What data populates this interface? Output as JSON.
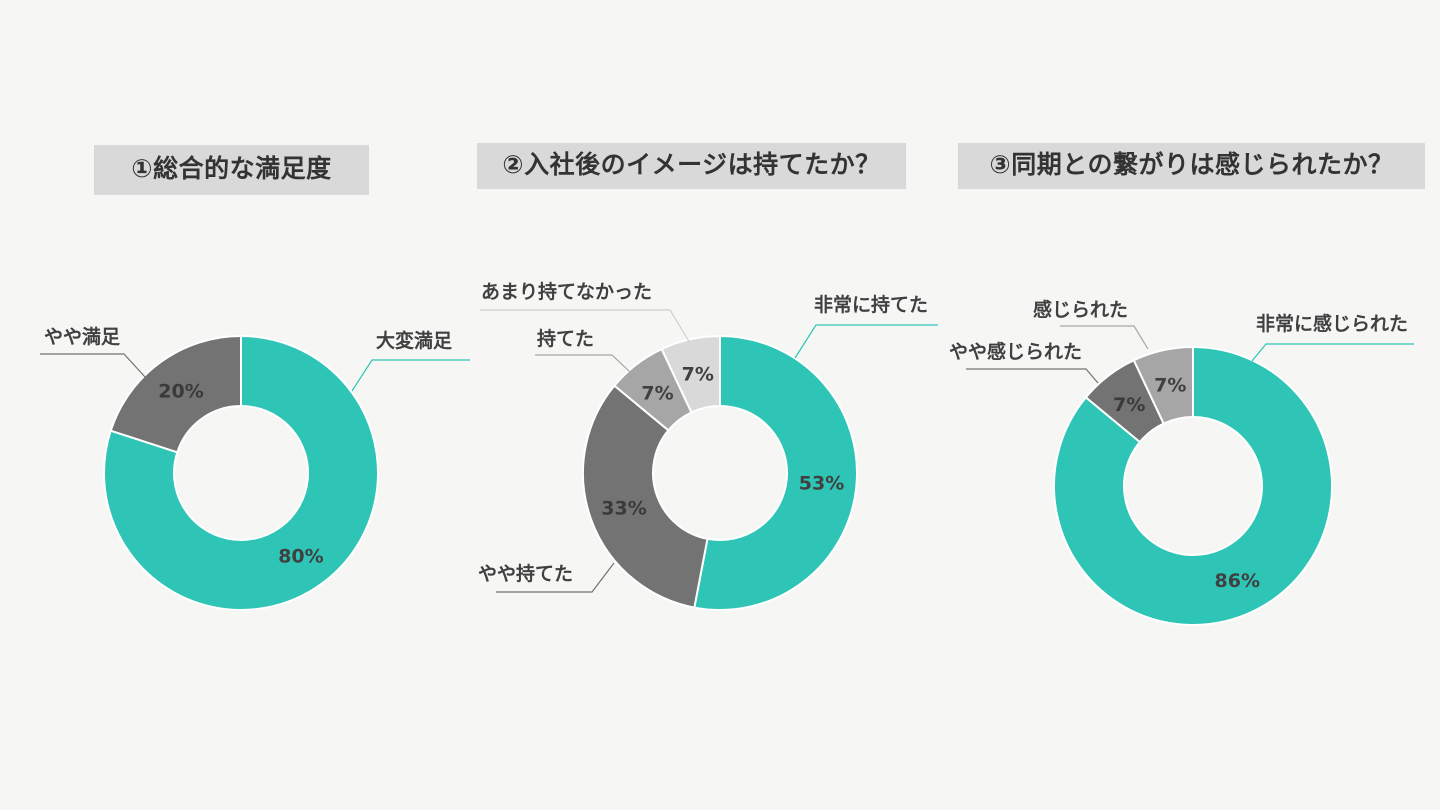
{
  "chart_data": [
    {
      "type": "donut",
      "title": "①総合的な満足度",
      "slices": [
        {
          "label": "大変満足",
          "value": 80,
          "display": "80%",
          "color": "#2ec5b6"
        },
        {
          "label": "やや満足",
          "value": 20,
          "display": "20%",
          "color": "#737373"
        }
      ]
    },
    {
      "type": "donut",
      "title": "②入社後のイメージは持てたか？",
      "slices": [
        {
          "label": "非常に持てた",
          "value": 53,
          "display": "53%",
          "color": "#2ec5b6"
        },
        {
          "label": "やや持てた",
          "value": 33,
          "display": "33%",
          "color": "#737373"
        },
        {
          "label": "持てた",
          "value": 7,
          "display": "7%",
          "color": "#a6a6a6"
        },
        {
          "label": "あまり持てなかった",
          "value": 7,
          "display": "7%",
          "color": "#d9d9d9"
        }
      ]
    },
    {
      "type": "donut",
      "title": "③同期との繋がりは感じられたか？",
      "slices": [
        {
          "label": "非常に感じられた",
          "value": 86,
          "display": "86%",
          "color": "#2ec5b6"
        },
        {
          "label": "やや感じられた",
          "value": 7,
          "display": "7%",
          "color": "#737373"
        },
        {
          "label": "感じられた",
          "value": 7,
          "display": "7%",
          "color": "#a6a6a6"
        }
      ]
    }
  ]
}
